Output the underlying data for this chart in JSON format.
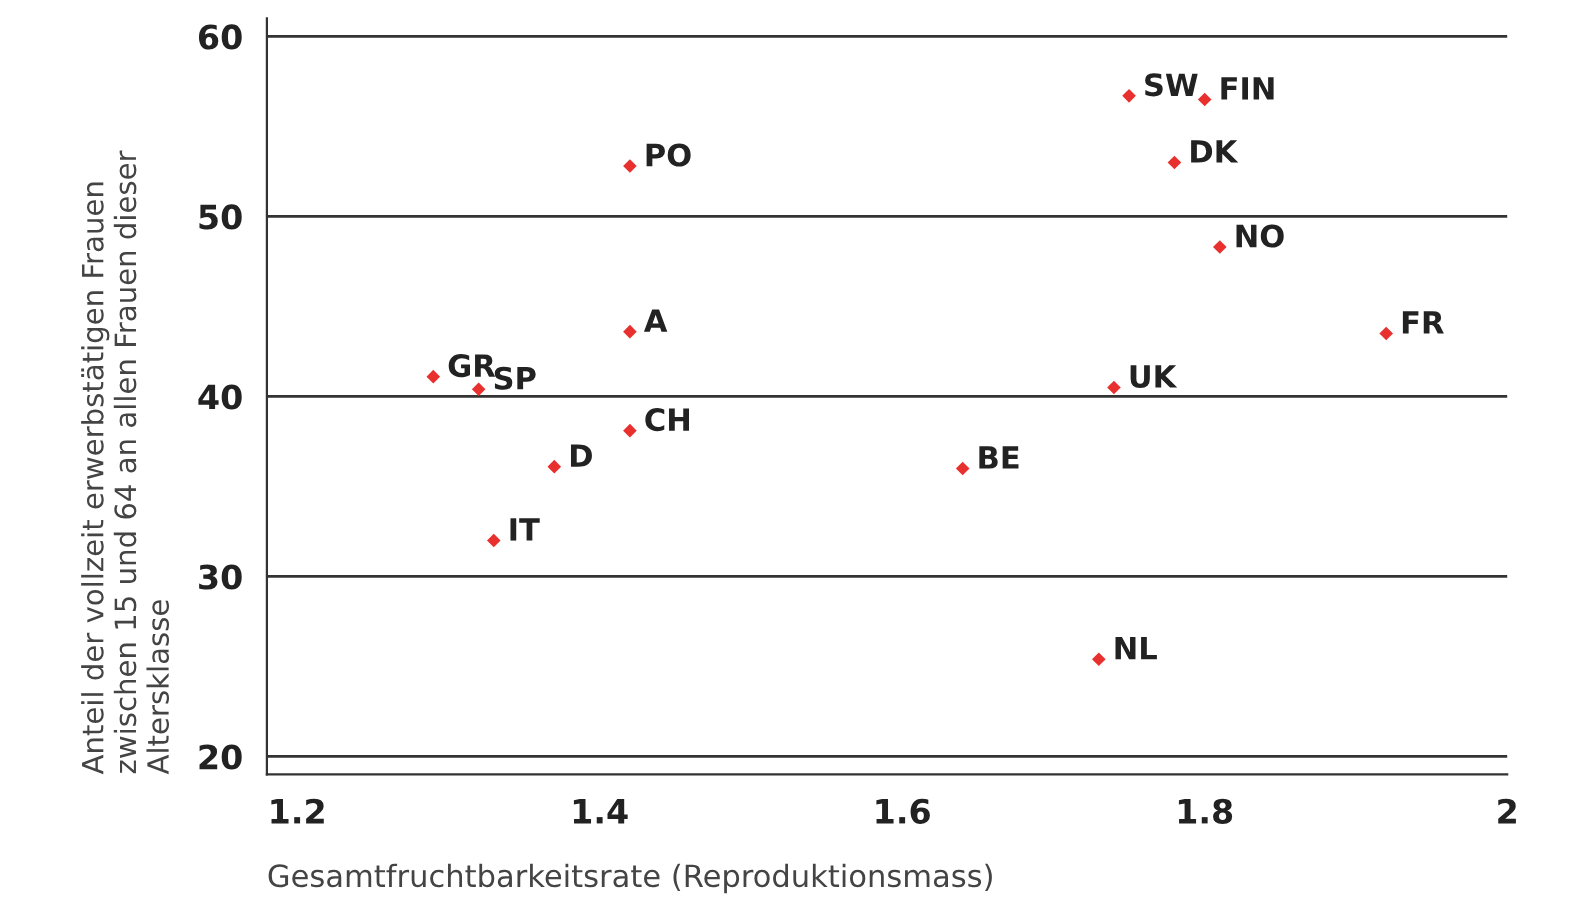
{
  "chart_data": {
    "type": "scatter",
    "xlabel": "Gesamtfruchtbarkeitsrate (Reproduktionsmass)",
    "ylabel": "Anteil der vollzeit erwerbstätigen Frauen\nzwischen 15 und 64 an allen Frauen dieser\nAltersklasse",
    "x": [
      1.42,
      1.42,
      1.29,
      1.32,
      1.42,
      1.37,
      1.33,
      1.75,
      1.8,
      1.78,
      1.81,
      1.92,
      1.74,
      1.64,
      1.73
    ],
    "series": [
      {
        "color": "#e8312f",
        "values": [
          52.8,
          43.6,
          41.1,
          40.4,
          38.1,
          36.1,
          32.0,
          56.7,
          56.5,
          53.0,
          48.3,
          43.5,
          40.5,
          36.0,
          25.4
        ]
      }
    ],
    "annotations": [
      {
        "text": "PO",
        "x": 1.42,
        "y": 52.8
      },
      {
        "text": "A",
        "x": 1.42,
        "y": 43.6
      },
      {
        "text": "GR",
        "x": 1.29,
        "y": 41.1
      },
      {
        "text": "SP",
        "x": 1.32,
        "y": 40.4
      },
      {
        "text": "CH",
        "x": 1.42,
        "y": 38.1
      },
      {
        "text": "D",
        "x": 1.37,
        "y": 36.1
      },
      {
        "text": "IT",
        "x": 1.33,
        "y": 32.0
      },
      {
        "text": "SW",
        "x": 1.75,
        "y": 56.7
      },
      {
        "text": "FIN",
        "x": 1.8,
        "y": 56.5
      },
      {
        "text": "DK",
        "x": 1.78,
        "y": 53.0
      },
      {
        "text": "NO",
        "x": 1.81,
        "y": 48.3
      },
      {
        "text": "FR",
        "x": 1.92,
        "y": 43.5
      },
      {
        "text": "UK",
        "x": 1.74,
        "y": 40.5
      },
      {
        "text": "BE",
        "x": 1.64,
        "y": 36.0
      },
      {
        "text": "NL",
        "x": 1.73,
        "y": 25.4
      }
    ],
    "xlim": [
      1.18,
      2.0
    ],
    "ylim": [
      19,
      61
    ],
    "xticks": [
      1.2,
      1.4,
      1.6,
      1.8,
      2
    ],
    "yticks": [
      20,
      30,
      40,
      50,
      60
    ],
    "grid": "y",
    "marker": "diamond",
    "legend": false
  }
}
